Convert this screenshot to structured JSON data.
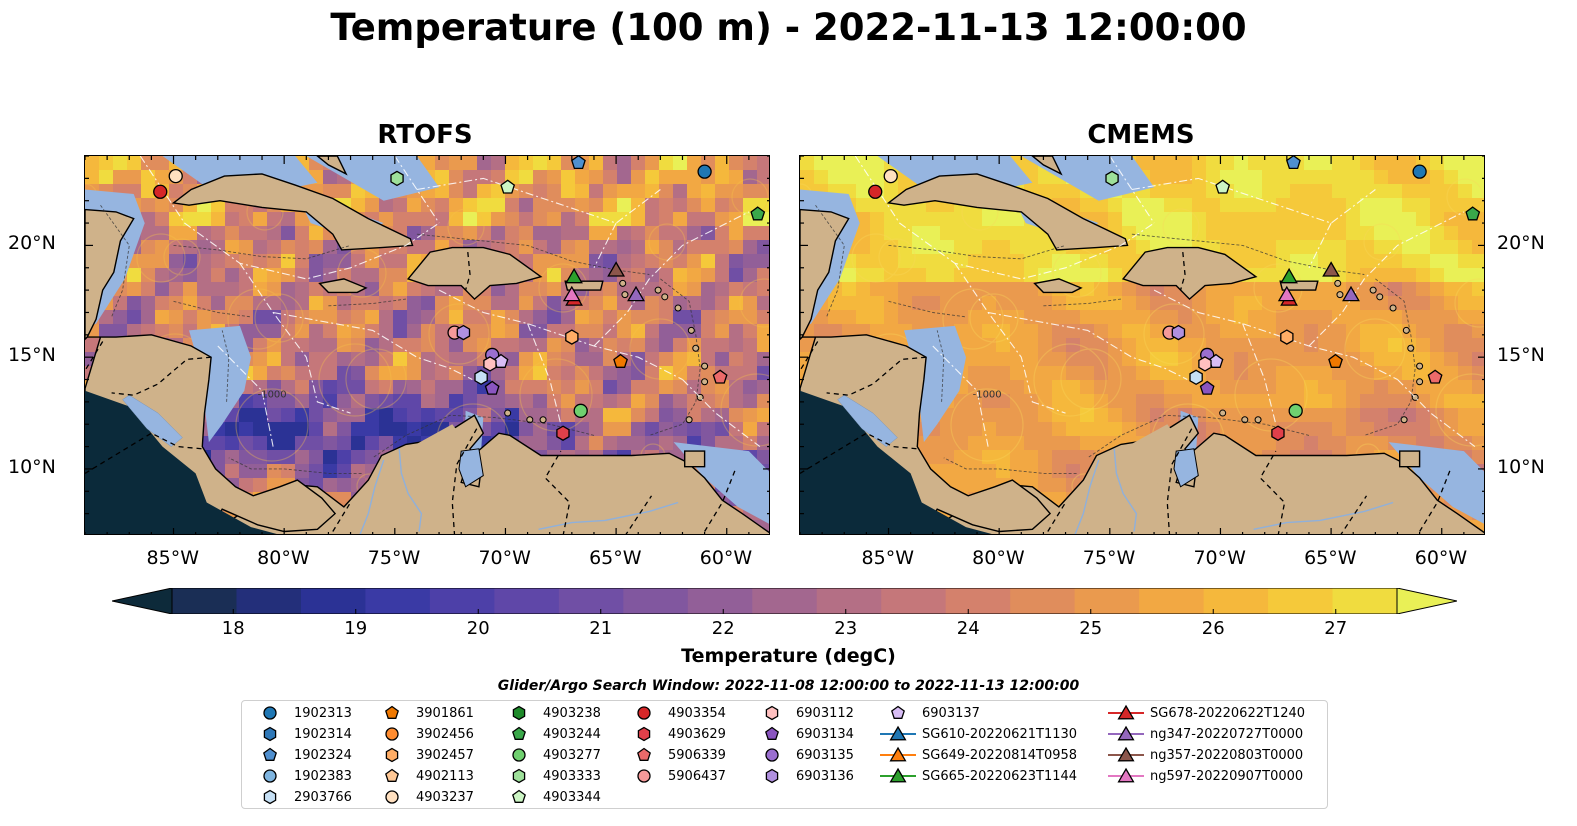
{
  "title": "Temperature (100 m) - 2022-11-13 12:00:00",
  "panels": [
    {
      "title": "RTOFS",
      "palette": "thermal"
    },
    {
      "title": "CMEMS",
      "palette": "warm"
    }
  ],
  "map": {
    "lon_range": [
      -89,
      -58
    ],
    "lat_range": [
      7,
      24
    ],
    "x_ticks": [
      -85,
      -80,
      -75,
      -70,
      -65,
      -60
    ],
    "x_tick_labels": [
      "85°W",
      "80°W",
      "75°W",
      "70°W",
      "65°W",
      "60°W"
    ],
    "y_ticks": [
      10,
      15,
      20
    ],
    "y_tick_labels": [
      "10°N",
      "15°N",
      "20°N"
    ],
    "ocean_contour_label": "-1000",
    "colors": {
      "land": "#cfb28a",
      "shallow_water": "#96b5e0",
      "deep_outside": "#0b2a3a"
    }
  },
  "colorbar": {
    "label": "Temperature (degC)",
    "min": 17.5,
    "max": 27.5,
    "step": 0.5,
    "ticks": [
      "18",
      "19",
      "20",
      "21",
      "22",
      "23",
      "24",
      "25",
      "26",
      "27"
    ],
    "extend": "both",
    "colors": [
      "#0d2a3a",
      "#1a2e55",
      "#232f7a",
      "#2b3295",
      "#3a3aa5",
      "#4d40a8",
      "#5f47a8",
      "#704fa5",
      "#81579f",
      "#925f98",
      "#a3678f",
      "#b46f85",
      "#c5777a",
      "#d4816c",
      "#e08d5c",
      "#ea9a4e",
      "#f2a843",
      "#f5b83c",
      "#f5c93a",
      "#f0dc3f",
      "#e9f056"
    ]
  },
  "legend": {
    "title": "Glider/Argo Search Window: 2022-11-08 12:00:00 to 2022-11-13 12:00:00",
    "columns": [
      [
        {
          "label": "1902313",
          "marker": "circle",
          "color": "#1f77b4"
        },
        {
          "label": "1902314",
          "marker": "hexagon",
          "color": "#2f78b8"
        },
        {
          "label": "1902324",
          "marker": "pentagon",
          "color": "#4f8fcf"
        },
        {
          "label": "1902383",
          "marker": "circle",
          "color": "#7fb5e0"
        },
        {
          "label": "2903766",
          "marker": "hexagon",
          "color": "#c6e0f5"
        }
      ],
      [
        {
          "label": "3901861",
          "marker": "pentagon",
          "color": "#f07800"
        },
        {
          "label": "3902456",
          "marker": "circle",
          "color": "#ff8c30"
        },
        {
          "label": "3902457",
          "marker": "hexagon",
          "color": "#ffad66"
        },
        {
          "label": "4902113",
          "marker": "pentagon",
          "color": "#ffc896"
        },
        {
          "label": "4903237",
          "marker": "circle",
          "color": "#ffe0c0"
        }
      ],
      [
        {
          "label": "4903238",
          "marker": "hexagon",
          "color": "#1e8a2a"
        },
        {
          "label": "4903244",
          "marker": "pentagon",
          "color": "#3aa84a"
        },
        {
          "label": "4903277",
          "marker": "circle",
          "color": "#6fd06f"
        },
        {
          "label": "4903333",
          "marker": "hexagon",
          "color": "#9ee09a"
        },
        {
          "label": "4903344",
          "marker": "pentagon",
          "color": "#ccf5c4"
        }
      ],
      [
        {
          "label": "4903354",
          "marker": "circle",
          "color": "#d62728"
        },
        {
          "label": "4903629",
          "marker": "hexagon",
          "color": "#e0404a"
        },
        {
          "label": "5906339",
          "marker": "pentagon",
          "color": "#ec6a6a"
        },
        {
          "label": "5906437",
          "marker": "circle",
          "color": "#f59a9a"
        }
      ],
      [
        {
          "label": "6903112",
          "marker": "hexagon",
          "color": "#ffc0c0"
        },
        {
          "label": "6903134",
          "marker": "pentagon",
          "color": "#8a55c0"
        },
        {
          "label": "6903135",
          "marker": "circle",
          "color": "#9b6fd0"
        },
        {
          "label": "6903136",
          "marker": "hexagon",
          "color": "#b090df"
        }
      ],
      [
        {
          "label": "6903137",
          "marker": "pentagon",
          "color": "#d8bdf5"
        },
        {
          "label": "SG610-20220621T1130",
          "marker": "triangle",
          "color": "#1f77b4",
          "line": true
        },
        {
          "label": "SG649-20220814T0958",
          "marker": "triangle",
          "color": "#ff7f0e",
          "line": true
        },
        {
          "label": "SG665-20220623T1144",
          "marker": "triangle",
          "color": "#2ca02c",
          "line": true
        }
      ],
      [
        {
          "label": "SG678-20220622T1240",
          "marker": "triangle",
          "color": "#d62728",
          "line": true
        },
        {
          "label": "ng347-20220727T0000",
          "marker": "triangle",
          "color": "#9467bd",
          "line": true
        },
        {
          "label": "ng357-20220803T0000",
          "marker": "triangle",
          "color": "#8c564b",
          "line": true
        },
        {
          "label": "ng597-20220907T0000",
          "marker": "triangle",
          "color": "#e377c2",
          "line": true
        }
      ]
    ]
  },
  "platforms": [
    {
      "name": "1902313",
      "lon": -61.0,
      "lat": 23.3
    },
    {
      "name": "1902324",
      "lon": -66.7,
      "lat": 23.7
    },
    {
      "name": "4903244",
      "lon": -58.6,
      "lat": 21.4
    },
    {
      "name": "4903333",
      "lon": -74.9,
      "lat": 23.0
    },
    {
      "name": "4903237",
      "lon": -84.9,
      "lat": 23.1
    },
    {
      "name": "4903354",
      "lon": -85.6,
      "lat": 22.4
    },
    {
      "name": "4903344",
      "lon": -69.9,
      "lat": 22.6
    },
    {
      "name": "SG665-20220623T1144",
      "lon": -66.9,
      "lat": 18.6
    },
    {
      "name": "ng357-20220803T0000",
      "lon": -65.0,
      "lat": 18.9
    },
    {
      "name": "SG678-20220622T1240",
      "lon": -66.9,
      "lat": 17.6
    },
    {
      "name": "ng597-20220907T0000",
      "lon": -67.0,
      "lat": 17.8
    },
    {
      "name": "ng347-20220727T0000",
      "lon": -64.1,
      "lat": 17.8
    },
    {
      "name": "5906437",
      "lon": -72.3,
      "lat": 16.1
    },
    {
      "name": "6903136",
      "lon": -71.9,
      "lat": 16.1
    },
    {
      "name": "3902457",
      "lon": -67.0,
      "lat": 15.9
    },
    {
      "name": "3901861",
      "lon": -64.8,
      "lat": 14.8
    },
    {
      "name": "6903135",
      "lon": -70.6,
      "lat": 15.1
    },
    {
      "name": "6903137",
      "lon": -70.2,
      "lat": 14.8
    },
    {
      "name": "6903112",
      "lon": -70.7,
      "lat": 14.7
    },
    {
      "name": "2903766",
      "lon": -71.1,
      "lat": 14.1
    },
    {
      "name": "6903134",
      "lon": -70.6,
      "lat": 13.6
    },
    {
      "name": "5906339",
      "lon": -60.3,
      "lat": 14.1
    },
    {
      "name": "4903277",
      "lon": -66.6,
      "lat": 12.6
    },
    {
      "name": "4903629",
      "lon": -67.4,
      "lat": 11.6
    }
  ]
}
